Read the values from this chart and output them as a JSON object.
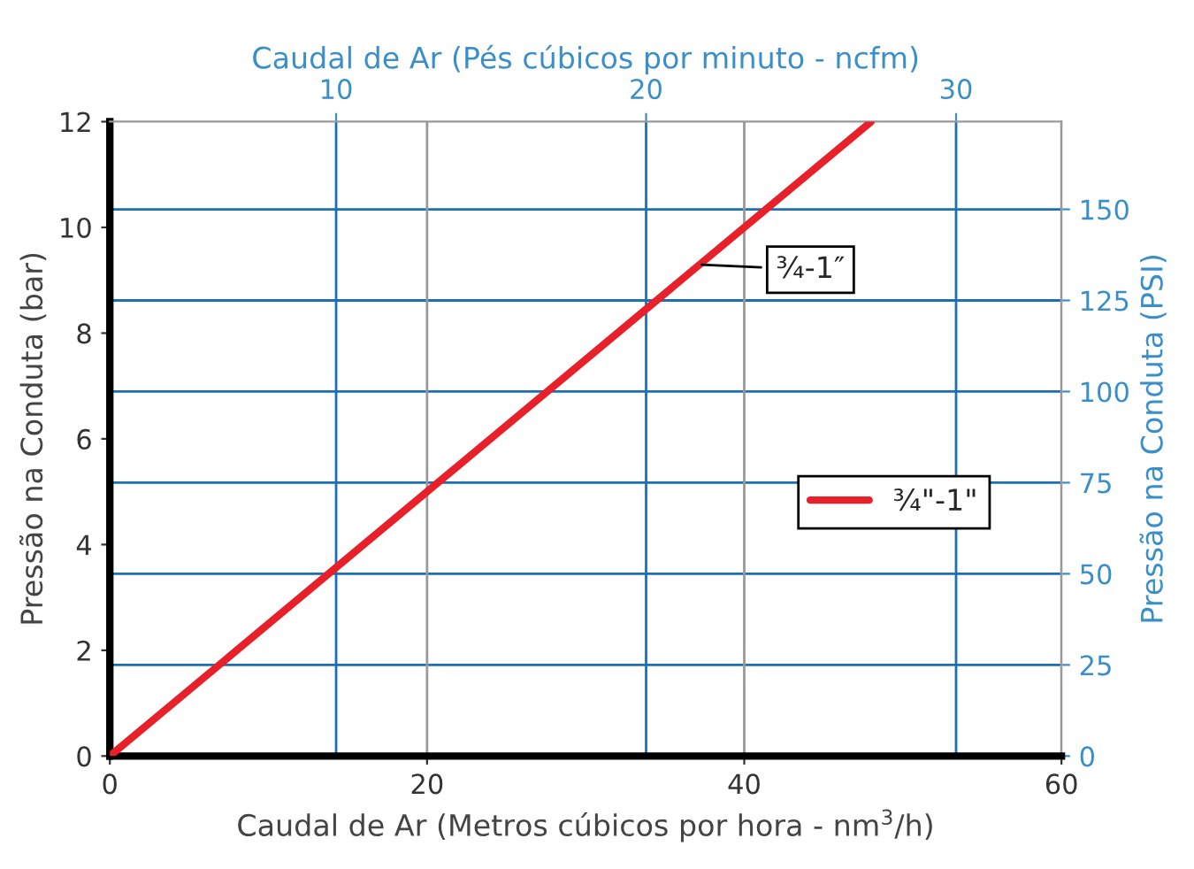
{
  "chart_data": {
    "type": "line",
    "xlabel": "Caudal de Ar (Metros cúbicos por hora - nm$^{3}$/h)",
    "ylabel": "Pressão na Conduta (bar)",
    "x2label": "Caudal de Ar (Pés cúbicos por minuto - ncfm)",
    "y2label": "Pressão na Conduta (PSI)",
    "x": [
      0,
      48
    ],
    "series": [
      {
        "name": "¾\"-1\"",
        "color": "#e8202a",
        "values": [
          0,
          12
        ]
      }
    ],
    "xlim": [
      0,
      60
    ],
    "xticks": [
      0,
      20,
      40,
      60
    ],
    "ylim": [
      0,
      12
    ],
    "yticks": [
      0,
      2,
      4,
      6,
      8,
      10,
      12
    ],
    "x2lim": [
      2.7,
      33.4
    ],
    "x2ticks": [
      10,
      20,
      30
    ],
    "y2lim": [
      0,
      174.05
    ],
    "y2ticks": [
      0,
      25,
      50,
      75,
      100,
      125,
      150
    ],
    "annotations": [
      {
        "text": "¾-1″",
        "x": 37,
        "y": 9.3
      }
    ],
    "grid": true,
    "legend": "right",
    "marker": "none",
    "line_style": "solid"
  }
}
